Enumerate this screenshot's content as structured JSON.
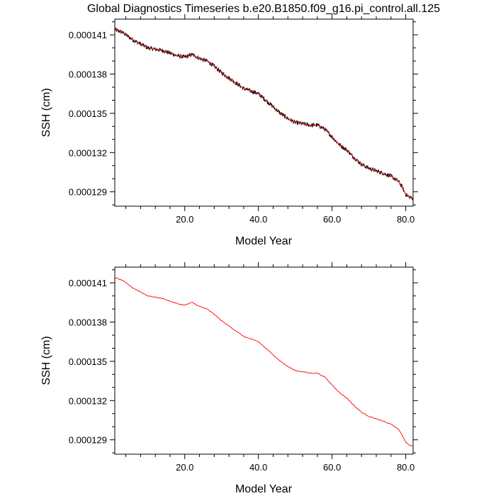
{
  "title": "Global Diagnostics Timeseries b.e20.B1850.f09_g16.pi_control.all.125",
  "colors": {
    "raw_series": "#000000",
    "smoothed_series": "#ff0000",
    "axes": "#000000"
  },
  "chart_data": [
    {
      "type": "line",
      "xlabel": "Model Year",
      "ylabel": "SSH (cm)",
      "xlim": [
        1,
        82
      ],
      "ylim": [
        0.0001279,
        0.0001422
      ],
      "xticks": [
        20.0,
        40.0,
        60.0,
        80.0
      ],
      "xtick_labels": [
        "20.0",
        "40.0",
        "60.0",
        "80.0"
      ],
      "yticks": [
        0.000129,
        0.000132,
        0.000135,
        0.000138,
        0.000141
      ],
      "ytick_labels": [
        "0.000129",
        "0.000132",
        "0.000135",
        "0.000138",
        "0.000141"
      ],
      "grid": false,
      "series": [
        {
          "color": "#000000",
          "style": "raw monthly, noisy",
          "x": [
            1,
            2,
            3,
            4,
            6,
            8,
            10,
            12,
            14,
            16,
            18,
            20,
            21,
            22,
            24,
            26,
            28,
            30,
            32,
            34,
            36,
            38,
            40,
            42,
            44,
            46,
            48,
            50,
            52,
            54,
            56,
            58,
            60,
            62,
            64,
            66,
            68,
            70,
            72,
            74,
            76,
            78,
            79,
            80,
            81,
            82
          ],
          "values": [
            0.0001414,
            0.0001413,
            0.0001412,
            0.000141,
            0.0001406,
            0.0001403,
            0.00014,
            0.0001399,
            0.0001398,
            0.0001396,
            0.0001394,
            0.0001393,
            0.0001394,
            0.0001395,
            0.0001392,
            0.000139,
            0.0001386,
            0.0001381,
            0.0001377,
            0.0001373,
            0.0001369,
            0.0001367,
            0.0001365,
            0.000136,
            0.0001355,
            0.000135,
            0.0001346,
            0.0001343,
            0.0001342,
            0.0001341,
            0.0001341,
            0.0001338,
            0.0001332,
            0.0001326,
            0.0001322,
            0.0001316,
            0.0001311,
            0.0001308,
            0.0001306,
            0.0001304,
            0.0001302,
            0.0001298,
            0.0001294,
            0.0001288,
            0.0001286,
            0.0001285
          ]
        },
        {
          "color": "#ff0000",
          "style": "smoothed",
          "x": [
            1,
            2,
            3,
            4,
            6,
            8,
            10,
            12,
            14,
            16,
            18,
            20,
            21,
            22,
            24,
            26,
            28,
            30,
            32,
            34,
            36,
            38,
            40,
            42,
            44,
            46,
            48,
            50,
            52,
            54,
            56,
            58,
            60,
            62,
            64,
            66,
            68,
            70,
            72,
            74,
            76,
            78,
            79,
            80,
            81,
            82
          ],
          "values": [
            0.0001414,
            0.0001413,
            0.0001412,
            0.000141,
            0.0001406,
            0.0001403,
            0.00014,
            0.0001399,
            0.0001398,
            0.0001396,
            0.0001394,
            0.0001393,
            0.0001394,
            0.0001395,
            0.0001392,
            0.000139,
            0.0001386,
            0.0001381,
            0.0001377,
            0.0001373,
            0.0001369,
            0.0001367,
            0.0001365,
            0.000136,
            0.0001355,
            0.000135,
            0.0001346,
            0.0001343,
            0.0001342,
            0.0001341,
            0.0001341,
            0.0001338,
            0.0001332,
            0.0001326,
            0.0001322,
            0.0001316,
            0.0001311,
            0.0001308,
            0.0001306,
            0.0001304,
            0.0001302,
            0.0001298,
            0.0001294,
            0.0001288,
            0.0001286,
            0.0001285
          ]
        }
      ]
    },
    {
      "type": "line",
      "xlabel": "Model Year",
      "ylabel": "SSH (cm)",
      "xlim": [
        1,
        82
      ],
      "ylim": [
        0.0001279,
        0.0001422
      ],
      "xticks": [
        20.0,
        40.0,
        60.0,
        80.0
      ],
      "xtick_labels": [
        "20.0",
        "40.0",
        "60.0",
        "80.0"
      ],
      "yticks": [
        0.000129,
        0.000132,
        0.000135,
        0.000138,
        0.000141
      ],
      "ytick_labels": [
        "0.000129",
        "0.000132",
        "0.000135",
        "0.000138",
        "0.000141"
      ],
      "grid": false,
      "series": [
        {
          "color": "#ff0000",
          "style": "smoothed",
          "x": [
            1,
            2,
            3,
            4,
            6,
            8,
            10,
            12,
            14,
            16,
            18,
            20,
            21,
            22,
            24,
            26,
            28,
            30,
            32,
            34,
            36,
            38,
            40,
            42,
            44,
            46,
            48,
            50,
            52,
            54,
            56,
            58,
            60,
            62,
            64,
            66,
            68,
            70,
            72,
            74,
            76,
            78,
            79,
            80,
            81,
            82
          ],
          "values": [
            0.0001414,
            0.0001413,
            0.0001412,
            0.000141,
            0.0001406,
            0.0001403,
            0.00014,
            0.0001399,
            0.0001398,
            0.0001396,
            0.0001394,
            0.0001393,
            0.0001394,
            0.0001395,
            0.0001392,
            0.000139,
            0.0001386,
            0.0001381,
            0.0001377,
            0.0001373,
            0.0001369,
            0.0001367,
            0.0001365,
            0.000136,
            0.0001355,
            0.000135,
            0.0001346,
            0.0001343,
            0.0001342,
            0.0001341,
            0.0001341,
            0.0001338,
            0.0001332,
            0.0001326,
            0.0001322,
            0.0001316,
            0.0001311,
            0.0001308,
            0.0001306,
            0.0001304,
            0.0001302,
            0.0001298,
            0.0001294,
            0.0001288,
            0.0001286,
            0.0001285
          ]
        }
      ]
    }
  ]
}
